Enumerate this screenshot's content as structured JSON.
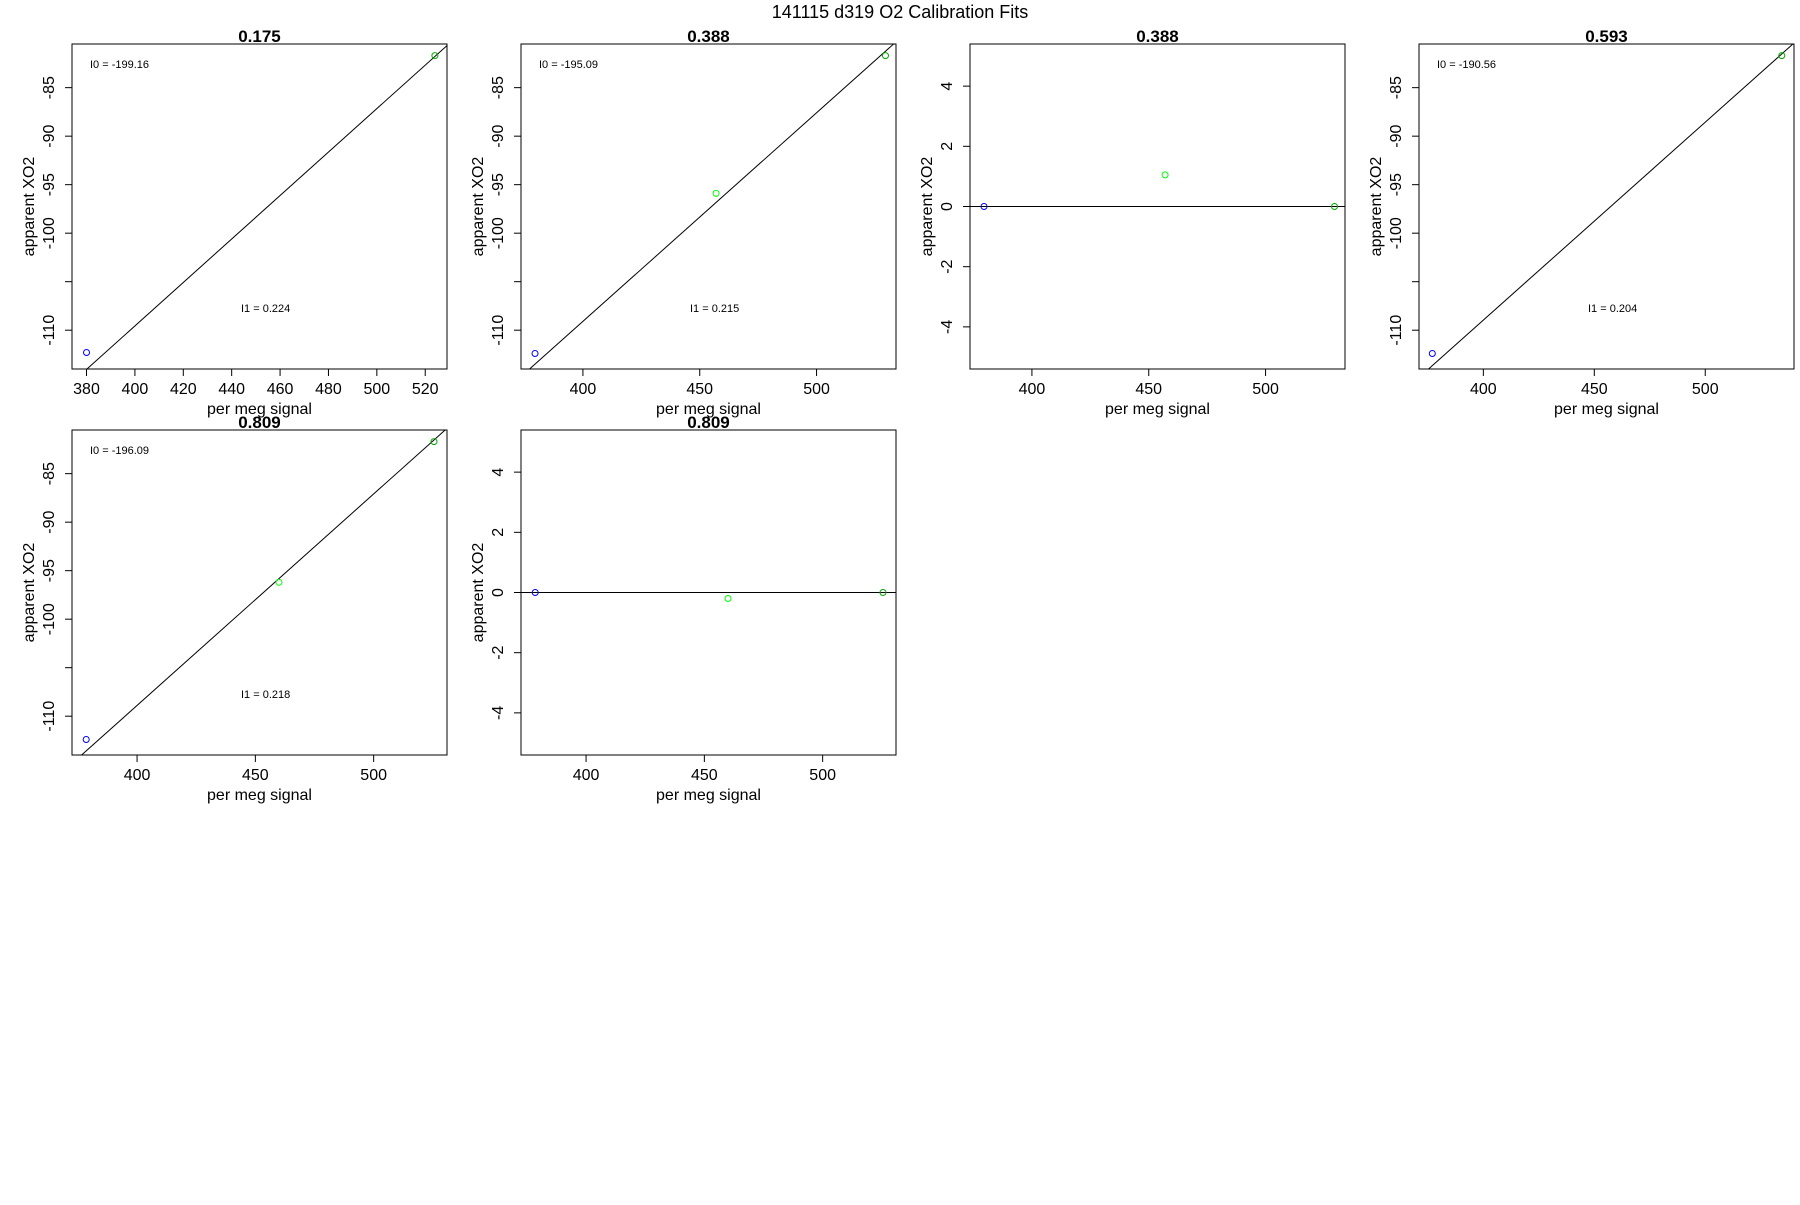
{
  "title": "141115   d319   O2 Calibration Fits",
  "chart_data": [
    {
      "type": "scatter",
      "title": "0.175",
      "xlabel": "per meg signal",
      "ylabel": "apparent XO2",
      "xlim": [
        374,
        529
      ],
      "ylim": [
        -114,
        -80.5
      ],
      "xticks": [
        380,
        400,
        420,
        440,
        460,
        480,
        500,
        520
      ],
      "yticks": [
        -85,
        -90,
        -95,
        -100,
        -105,
        -110
      ],
      "ytick_labels": [
        "-85",
        "-90",
        "-95",
        "-100",
        "",
        "-110"
      ],
      "points": [
        {
          "x": 380,
          "y": -112.3,
          "color": "#0000ff"
        },
        {
          "x": 524,
          "y": -81.7,
          "color": "#00aa00"
        }
      ],
      "fit_line": {
        "intercept": -199.16,
        "slope": 0.224
      },
      "annotations": [
        "I0 =  -199.16",
        "I1 =  0.224"
      ]
    },
    {
      "type": "scatter",
      "title": "0.388",
      "xlabel": "per meg signal",
      "ylabel": "apparent XO2",
      "xlim": [
        373.5,
        534
      ],
      "ylim": [
        -114,
        -80.5
      ],
      "xticks": [
        400,
        450,
        500
      ],
      "yticks": [
        -85,
        -90,
        -95,
        -100,
        -105,
        -110
      ],
      "ytick_labels": [
        "-85",
        "-90",
        "-95",
        "-100",
        "",
        "-110"
      ],
      "points": [
        {
          "x": 379.5,
          "y": -112.4,
          "color": "#0000ff"
        },
        {
          "x": 457,
          "y": -95.9,
          "color": "#00ff00"
        },
        {
          "x": 529.5,
          "y": -81.7,
          "color": "#00aa00"
        }
      ],
      "fit_line": {
        "intercept": -195.09,
        "slope": 0.215
      },
      "annotations": [
        "I0 =  -195.09",
        "I1 =  0.215"
      ]
    },
    {
      "type": "scatter",
      "title": "0.388",
      "xlabel": "per meg signal",
      "ylabel": "apparent XO2",
      "xlim": [
        373.5,
        534
      ],
      "ylim": [
        -5.4,
        5.4
      ],
      "xticks": [
        400,
        450,
        500
      ],
      "yticks": [
        4,
        2,
        0,
        -2,
        -4
      ],
      "ytick_labels": [
        "4",
        "2",
        "0",
        "-2",
        "-4"
      ],
      "points": [
        {
          "x": 379.5,
          "y": 0,
          "color": "#0000ff"
        },
        {
          "x": 457,
          "y": 1.05,
          "color": "#00ff00"
        },
        {
          "x": 529.5,
          "y": 0,
          "color": "#00aa00"
        }
      ],
      "hline": 0,
      "annotations": []
    },
    {
      "type": "scatter",
      "title": "0.593",
      "xlabel": "per meg signal",
      "ylabel": "apparent XO2",
      "xlim": [
        371,
        540
      ],
      "ylim": [
        -114,
        -80.5
      ],
      "xticks": [
        400,
        450,
        500
      ],
      "yticks": [
        -85,
        -90,
        -95,
        -100,
        -105,
        -110
      ],
      "ytick_labels": [
        "-85",
        "-90",
        "-95",
        "-100",
        "",
        "-110"
      ],
      "points": [
        {
          "x": 377,
          "y": -112.4,
          "color": "#0000ff"
        },
        {
          "x": 534.5,
          "y": -81.7,
          "color": "#00aa00"
        }
      ],
      "fit_line": {
        "intercept": -190.56,
        "slope": 0.204
      },
      "annotations": [
        "I0 =  -190.56",
        "I1 =  0.204"
      ]
    },
    {
      "type": "scatter",
      "title": "0.809",
      "xlabel": "per meg signal",
      "ylabel": "apparent XO2",
      "xlim": [
        372.5,
        531
      ],
      "ylim": [
        -114,
        -80.5
      ],
      "xticks": [
        400,
        450,
        500
      ],
      "yticks": [
        -85,
        -90,
        -95,
        -100,
        -105,
        -110
      ],
      "ytick_labels": [
        "-85",
        "-90",
        "-95",
        "-100",
        "",
        "-110"
      ],
      "points": [
        {
          "x": 378.5,
          "y": -112.4,
          "color": "#0000ff"
        },
        {
          "x": 460,
          "y": -96.2,
          "color": "#00ff00"
        },
        {
          "x": 525.5,
          "y": -81.7,
          "color": "#00aa00"
        }
      ],
      "fit_line": {
        "intercept": -196.09,
        "slope": 0.218
      },
      "annotations": [
        "I0 =  -196.09",
        "I1 =  0.218"
      ]
    },
    {
      "type": "scatter",
      "title": "0.809",
      "xlabel": "per meg signal",
      "ylabel": "apparent XO2",
      "xlim": [
        372.5,
        531
      ],
      "ylim": [
        -5.4,
        5.4
      ],
      "xticks": [
        400,
        450,
        500
      ],
      "yticks": [
        4,
        2,
        0,
        -2,
        -4
      ],
      "ytick_labels": [
        "4",
        "2",
        "0",
        "-2",
        "-4"
      ],
      "points": [
        {
          "x": 378.5,
          "y": 0,
          "color": "#0000ff"
        },
        {
          "x": 460,
          "y": -0.2,
          "color": "#00ff00"
        },
        {
          "x": 525.5,
          "y": 0,
          "color": "#00aa00"
        }
      ],
      "hline": 0,
      "annotations": []
    }
  ]
}
